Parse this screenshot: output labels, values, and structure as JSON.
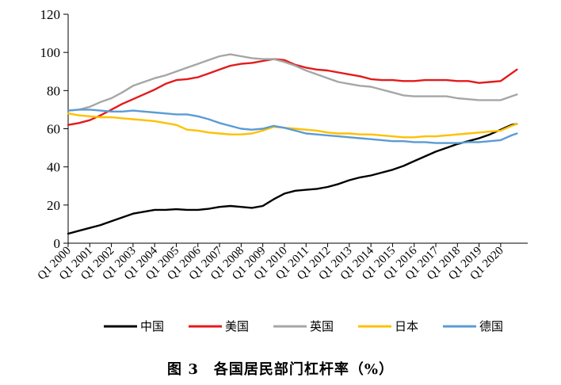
{
  "caption": "图 3　各国居民部门杠杆率（%）",
  "chart_data": {
    "type": "line",
    "title": "图 3　各国居民部门杠杆率（%）",
    "xlabel": "",
    "ylabel": "",
    "ylim": [
      0,
      120
    ],
    "yticks": [
      0,
      20,
      40,
      60,
      80,
      100,
      120
    ],
    "xlim": [
      2000,
      2021.25
    ],
    "x_tick_labels": [
      "Q1 2000",
      "Q1 2001",
      "Q1 2002",
      "Q1 2003",
      "Q1 2004",
      "Q1 2005",
      "Q1 2006",
      "Q1 2007",
      "Q1 2008",
      "Q1 2009",
      "Q1 2010",
      "Q1 2011",
      "Q1 2012",
      "Q1 2013",
      "Q1 2014",
      "Q1 2015",
      "Q1 2016",
      "Q1 2017",
      "Q1 2018",
      "Q1 2019",
      "Q1 2020"
    ],
    "x_tick_positions": [
      2000,
      2001,
      2002,
      2003,
      2004,
      2005,
      2006,
      2007,
      2008,
      2009,
      2010,
      2011,
      2012,
      2013,
      2014,
      2015,
      2016,
      2017,
      2018,
      2019,
      2020
    ],
    "grid": false,
    "legend_position": "bottom",
    "series": [
      {
        "name": "中国",
        "color": "#000000",
        "points": [
          [
            2000,
            5
          ],
          [
            2000.5,
            6.5
          ],
          [
            2001,
            8
          ],
          [
            2001.5,
            9.5
          ],
          [
            2002,
            11.5
          ],
          [
            2002.5,
            13.5
          ],
          [
            2003,
            15.5
          ],
          [
            2003.5,
            16.5
          ],
          [
            2004,
            17.5
          ],
          [
            2004.5,
            17.5
          ],
          [
            2005,
            17.8
          ],
          [
            2005.5,
            17.5
          ],
          [
            2006,
            17.5
          ],
          [
            2006.5,
            18
          ],
          [
            2007,
            19
          ],
          [
            2007.5,
            19.5
          ],
          [
            2008,
            19
          ],
          [
            2008.5,
            18.5
          ],
          [
            2009,
            19.5
          ],
          [
            2009.5,
            23
          ],
          [
            2010,
            26
          ],
          [
            2010.5,
            27.5
          ],
          [
            2011,
            28
          ],
          [
            2011.5,
            28.5
          ],
          [
            2012,
            29.5
          ],
          [
            2012.5,
            31
          ],
          [
            2013,
            33
          ],
          [
            2013.5,
            34.5
          ],
          [
            2014,
            35.5
          ],
          [
            2014.5,
            37
          ],
          [
            2015,
            38.5
          ],
          [
            2015.5,
            40.5
          ],
          [
            2016,
            43
          ],
          [
            2016.5,
            45.5
          ],
          [
            2017,
            48
          ],
          [
            2017.5,
            50
          ],
          [
            2018,
            52
          ],
          [
            2018.5,
            53.5
          ],
          [
            2019,
            55
          ],
          [
            2019.5,
            57
          ],
          [
            2020,
            59.5
          ],
          [
            2020.5,
            62
          ],
          [
            2020.75,
            62.5
          ]
        ]
      },
      {
        "name": "美国",
        "color": "#e31a1c",
        "points": [
          [
            2000,
            62
          ],
          [
            2000.5,
            63
          ],
          [
            2001,
            64.5
          ],
          [
            2001.5,
            67
          ],
          [
            2002,
            70
          ],
          [
            2002.5,
            73
          ],
          [
            2003,
            75.5
          ],
          [
            2003.5,
            78
          ],
          [
            2004,
            80.5
          ],
          [
            2004.5,
            83.5
          ],
          [
            2005,
            85.5
          ],
          [
            2005.5,
            86
          ],
          [
            2006,
            87
          ],
          [
            2006.5,
            89
          ],
          [
            2007,
            91
          ],
          [
            2007.5,
            93
          ],
          [
            2008,
            94
          ],
          [
            2008.5,
            94.5
          ],
          [
            2009,
            95.5
          ],
          [
            2009.5,
            96.5
          ],
          [
            2010,
            96
          ],
          [
            2010.5,
            93.5
          ],
          [
            2011,
            92
          ],
          [
            2011.5,
            91
          ],
          [
            2012,
            90.5
          ],
          [
            2012.5,
            89.5
          ],
          [
            2013,
            88.5
          ],
          [
            2013.5,
            87.5
          ],
          [
            2014,
            86
          ],
          [
            2014.5,
            85.5
          ],
          [
            2015,
            85.5
          ],
          [
            2015.5,
            85
          ],
          [
            2016,
            85
          ],
          [
            2016.5,
            85.5
          ],
          [
            2017,
            85.5
          ],
          [
            2017.5,
            85.5
          ],
          [
            2018,
            85
          ],
          [
            2018.5,
            85
          ],
          [
            2019,
            84
          ],
          [
            2019.5,
            84.5
          ],
          [
            2020,
            85
          ],
          [
            2020.5,
            89
          ],
          [
            2020.75,
            91
          ]
        ]
      },
      {
        "name": "英国",
        "color": "#a6a6a6",
        "points": [
          [
            2000,
            69.5
          ],
          [
            2000.5,
            70
          ],
          [
            2001,
            71.5
          ],
          [
            2001.5,
            74
          ],
          [
            2002,
            76
          ],
          [
            2002.5,
            79
          ],
          [
            2003,
            82.5
          ],
          [
            2003.5,
            84.5
          ],
          [
            2004,
            86.5
          ],
          [
            2004.5,
            88
          ],
          [
            2005,
            90
          ],
          [
            2005.5,
            92
          ],
          [
            2006,
            94
          ],
          [
            2006.5,
            96
          ],
          [
            2007,
            98
          ],
          [
            2007.5,
            99
          ],
          [
            2008,
            98
          ],
          [
            2008.5,
            97
          ],
          [
            2009,
            96.5
          ],
          [
            2009.5,
            96.5
          ],
          [
            2010,
            95
          ],
          [
            2010.5,
            93
          ],
          [
            2011,
            90.5
          ],
          [
            2011.5,
            88.5
          ],
          [
            2012,
            86.5
          ],
          [
            2012.5,
            84.5
          ],
          [
            2013,
            83.5
          ],
          [
            2013.5,
            82.5
          ],
          [
            2014,
            82
          ],
          [
            2014.5,
            80.5
          ],
          [
            2015,
            79
          ],
          [
            2015.5,
            77.5
          ],
          [
            2016,
            77
          ],
          [
            2016.5,
            77
          ],
          [
            2017,
            77
          ],
          [
            2017.5,
            77
          ],
          [
            2018,
            76
          ],
          [
            2018.5,
            75.5
          ],
          [
            2019,
            75
          ],
          [
            2019.5,
            75
          ],
          [
            2020,
            75
          ],
          [
            2020.5,
            77
          ],
          [
            2020.75,
            78
          ]
        ]
      },
      {
        "name": "日本",
        "color": "#ffc000",
        "points": [
          [
            2000,
            68
          ],
          [
            2000.5,
            67
          ],
          [
            2001,
            66.5
          ],
          [
            2001.5,
            66
          ],
          [
            2002,
            66
          ],
          [
            2002.5,
            65.5
          ],
          [
            2003,
            65
          ],
          [
            2003.5,
            64.5
          ],
          [
            2004,
            64
          ],
          [
            2004.5,
            63
          ],
          [
            2005,
            62
          ],
          [
            2005.5,
            59.5
          ],
          [
            2006,
            59
          ],
          [
            2006.5,
            58
          ],
          [
            2007,
            57.5
          ],
          [
            2007.5,
            57
          ],
          [
            2008,
            57
          ],
          [
            2008.5,
            57.5
          ],
          [
            2009,
            59
          ],
          [
            2009.5,
            61
          ],
          [
            2010,
            60.5
          ],
          [
            2010.5,
            60
          ],
          [
            2011,
            59.5
          ],
          [
            2011.5,
            59
          ],
          [
            2012,
            58
          ],
          [
            2012.5,
            57.5
          ],
          [
            2013,
            57.5
          ],
          [
            2013.5,
            57
          ],
          [
            2014,
            57
          ],
          [
            2014.5,
            56.5
          ],
          [
            2015,
            56
          ],
          [
            2015.5,
            55.5
          ],
          [
            2016,
            55.5
          ],
          [
            2016.5,
            56
          ],
          [
            2017,
            56
          ],
          [
            2017.5,
            56.5
          ],
          [
            2018,
            57
          ],
          [
            2018.5,
            57.5
          ],
          [
            2019,
            58
          ],
          [
            2019.5,
            58.5
          ],
          [
            2020,
            59
          ],
          [
            2020.5,
            61.5
          ],
          [
            2020.75,
            62.5
          ]
        ]
      },
      {
        "name": "德国",
        "color": "#5b9bd5",
        "points": [
          [
            2000,
            69.5
          ],
          [
            2000.5,
            70
          ],
          [
            2001,
            70
          ],
          [
            2001.5,
            69.5
          ],
          [
            2002,
            69
          ],
          [
            2002.5,
            69
          ],
          [
            2003,
            69.5
          ],
          [
            2003.5,
            69
          ],
          [
            2004,
            68.5
          ],
          [
            2004.5,
            68
          ],
          [
            2005,
            67.5
          ],
          [
            2005.5,
            67.5
          ],
          [
            2006,
            66.5
          ],
          [
            2006.5,
            65
          ],
          [
            2007,
            63
          ],
          [
            2007.5,
            61.5
          ],
          [
            2008,
            60
          ],
          [
            2008.5,
            59.5
          ],
          [
            2009,
            60
          ],
          [
            2009.5,
            61.5
          ],
          [
            2010,
            60.5
          ],
          [
            2010.5,
            59
          ],
          [
            2011,
            57.5
          ],
          [
            2011.5,
            57
          ],
          [
            2012,
            56.5
          ],
          [
            2012.5,
            56
          ],
          [
            2013,
            55.5
          ],
          [
            2013.5,
            55
          ],
          [
            2014,
            54.5
          ],
          [
            2014.5,
            54
          ],
          [
            2015,
            53.5
          ],
          [
            2015.5,
            53.5
          ],
          [
            2016,
            53
          ],
          [
            2016.5,
            53
          ],
          [
            2017,
            52.5
          ],
          [
            2017.5,
            52.5
          ],
          [
            2018,
            52.5
          ],
          [
            2018.5,
            53
          ],
          [
            2019,
            53
          ],
          [
            2019.5,
            53.5
          ],
          [
            2020,
            54
          ],
          [
            2020.5,
            56.5
          ],
          [
            2020.75,
            57.5
          ]
        ]
      }
    ]
  }
}
